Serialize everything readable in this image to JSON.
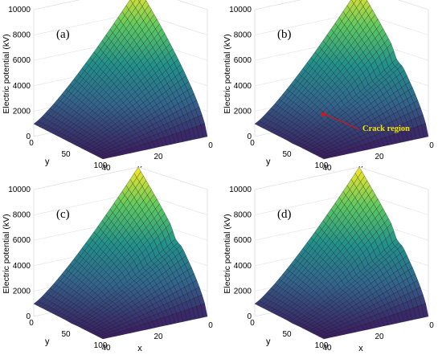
{
  "chart_data": [
    {
      "type": "surface",
      "panel_label": "(a)",
      "zlabel": "Electric potential (kV)",
      "xlabel": "x",
      "ylabel": "y",
      "z_ticks": [
        0,
        2000,
        4000,
        6000,
        8000,
        10000
      ],
      "x_ticks": [
        40,
        20,
        0
      ],
      "y_ticks": [
        0,
        50,
        100
      ],
      "zlim": [
        0,
        10000
      ],
      "xlim": [
        0,
        40
      ],
      "ylim": [
        0,
        100
      ],
      "colormap": [
        "#3b1f64",
        "#33638d",
        "#21918c",
        "#5ec962",
        "#fde725"
      ],
      "crack": false,
      "annotation": ""
    },
    {
      "type": "surface",
      "panel_label": "(b)",
      "zlabel": "Electric potential (kV)",
      "xlabel": "x",
      "ylabel": "y",
      "z_ticks": [
        0,
        2000,
        4000,
        6000,
        8000,
        10000
      ],
      "x_ticks": [
        40,
        20,
        0
      ],
      "y_ticks": [
        0,
        50,
        100
      ],
      "zlim": [
        0,
        10000
      ],
      "xlim": [
        0,
        40
      ],
      "ylim": [
        0,
        100
      ],
      "colormap": [
        "#3b1f64",
        "#33638d",
        "#21918c",
        "#5ec962",
        "#fde725"
      ],
      "crack": true,
      "annotation": "Crack region",
      "annotation_color": "#f5e400",
      "arrow_color": "#e01010"
    },
    {
      "type": "surface",
      "panel_label": "(c)",
      "zlabel": "Electric potential (kV)",
      "xlabel": "x",
      "ylabel": "y",
      "z_ticks": [
        0,
        2000,
        4000,
        6000,
        8000,
        10000
      ],
      "x_ticks": [
        40,
        20,
        0
      ],
      "y_ticks": [
        0,
        50,
        100
      ],
      "zlim": [
        0,
        10000
      ],
      "xlim": [
        0,
        40
      ],
      "ylim": [
        0,
        100
      ],
      "colormap": [
        "#3b1f64",
        "#33638d",
        "#21918c",
        "#5ec962",
        "#fde725"
      ],
      "crack": true,
      "annotation": ""
    },
    {
      "type": "surface",
      "panel_label": "(d)",
      "zlabel": "Electric potential (kV)",
      "xlabel": "x",
      "ylabel": "y",
      "z_ticks": [
        0,
        2000,
        4000,
        6000,
        8000,
        10000
      ],
      "x_ticks": [
        40,
        20,
        0
      ],
      "y_ticks": [
        0,
        50,
        100
      ],
      "zlim": [
        0,
        10000
      ],
      "xlim": [
        0,
        40
      ],
      "ylim": [
        0,
        100
      ],
      "colormap": [
        "#3b1f64",
        "#33638d",
        "#21918c",
        "#5ec962",
        "#fde725"
      ],
      "crack": true,
      "annotation": ""
    }
  ]
}
